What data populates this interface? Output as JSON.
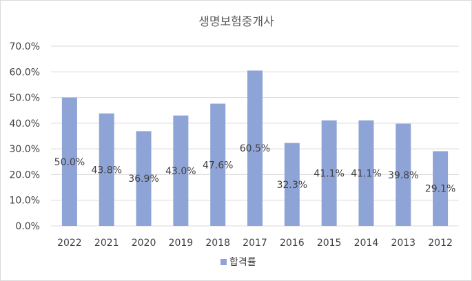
{
  "chart_data": {
    "type": "bar",
    "title": "생명보험중개사",
    "categories": [
      "2022",
      "2021",
      "2020",
      "2019",
      "2018",
      "2017",
      "2016",
      "2015",
      "2014",
      "2013",
      "2012"
    ],
    "series": [
      {
        "name": "합격률",
        "values": [
          50.0,
          43.8,
          36.9,
          43.0,
          47.6,
          60.5,
          32.3,
          41.1,
          41.1,
          39.8,
          29.1
        ],
        "labels": [
          "50.0%",
          "43.8%",
          "36.9%",
          "43.0%",
          "47.6%",
          "60.5%",
          "32.3%",
          "41.1%",
          "41.1%",
          "39.8%",
          "29.1%"
        ]
      }
    ],
    "ylim": [
      0,
      70
    ],
    "yticks": [
      "0.0%",
      "10.0%",
      "20.0%",
      "30.0%",
      "40.0%",
      "50.0%",
      "60.0%",
      "70.0%"
    ],
    "ytick_values": [
      0,
      10,
      20,
      30,
      40,
      50,
      60,
      70
    ],
    "grid": true,
    "legend": "bottom",
    "colors": {
      "bar": "#8fa4d6",
      "grid": "#d9d9d9",
      "text": "#404040"
    }
  }
}
